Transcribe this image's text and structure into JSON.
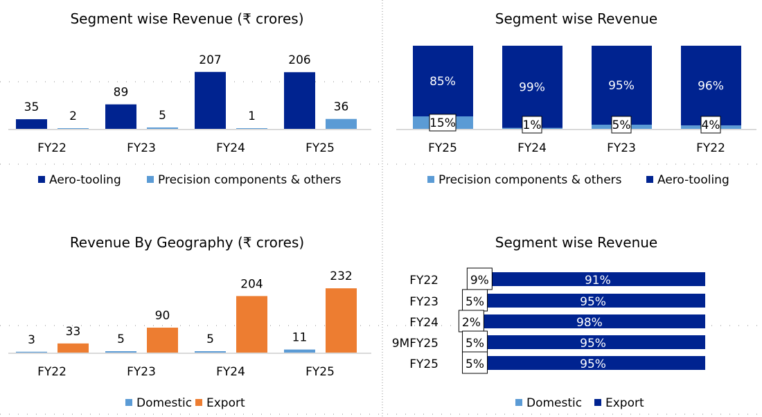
{
  "colors": {
    "dark_blue": "#002390",
    "light_blue": "#5B9BD5",
    "orange": "#ED7D31",
    "axis": "#D9D9D9"
  },
  "chart_data": [
    {
      "type": "bar",
      "title": "Segment wise Revenue (₹ crores)",
      "categories": [
        "FY22",
        "FY23",
        "FY24",
        "FY25"
      ],
      "series": [
        {
          "name": "Aero-tooling",
          "values": [
            35,
            89,
            207,
            206
          ],
          "color": "#002390"
        },
        {
          "name": "Precision components & others",
          "values": [
            2,
            5,
            1,
            36
          ],
          "color": "#5B9BD5"
        }
      ],
      "legend": "bottom"
    },
    {
      "type": "bar",
      "stacked": "percent",
      "title": "Segment wise Revenue",
      "categories": [
        "FY25",
        "FY24",
        "FY23",
        "FY22"
      ],
      "series": [
        {
          "name": "Precision components & others",
          "values": [
            15,
            1,
            5,
            4
          ],
          "labels": [
            "15%",
            "1%",
            "5%",
            "4%"
          ],
          "color": "#5B9BD5"
        },
        {
          "name": "Aero-tooling",
          "values": [
            85,
            99,
            95,
            96
          ],
          "labels": [
            "85%",
            "99%",
            "95%",
            "96%"
          ],
          "color": "#002390"
        }
      ],
      "legend": "bottom"
    },
    {
      "type": "bar",
      "title": "Revenue By Geography (₹ crores)",
      "categories": [
        "FY22",
        "FY23",
        "FY24",
        "FY25"
      ],
      "series": [
        {
          "name": "Domestic",
          "values": [
            3,
            5,
            5,
            11
          ],
          "color": "#5B9BD5"
        },
        {
          "name": "Export",
          "values": [
            33,
            90,
            204,
            232
          ],
          "color": "#ED7D31"
        }
      ],
      "legend": "bottom"
    },
    {
      "type": "bar",
      "orientation": "horizontal",
      "stacked": "percent",
      "title": "Segment wise Revenue",
      "categories": [
        "FY22",
        "FY23",
        "FY24",
        "9MFY25",
        "FY25"
      ],
      "series": [
        {
          "name": "Domestic",
          "values": [
            9,
            5,
            2,
            5,
            5
          ],
          "labels": [
            "9%",
            "5%",
            "2%",
            "5%",
            "5%"
          ],
          "color": "#5B9BD5"
        },
        {
          "name": "Export",
          "values": [
            91,
            95,
            98,
            95,
            95
          ],
          "labels": [
            "91%",
            "95%",
            "98%",
            "95%",
            "95%"
          ],
          "color": "#002390"
        }
      ],
      "legend": "bottom"
    }
  ]
}
